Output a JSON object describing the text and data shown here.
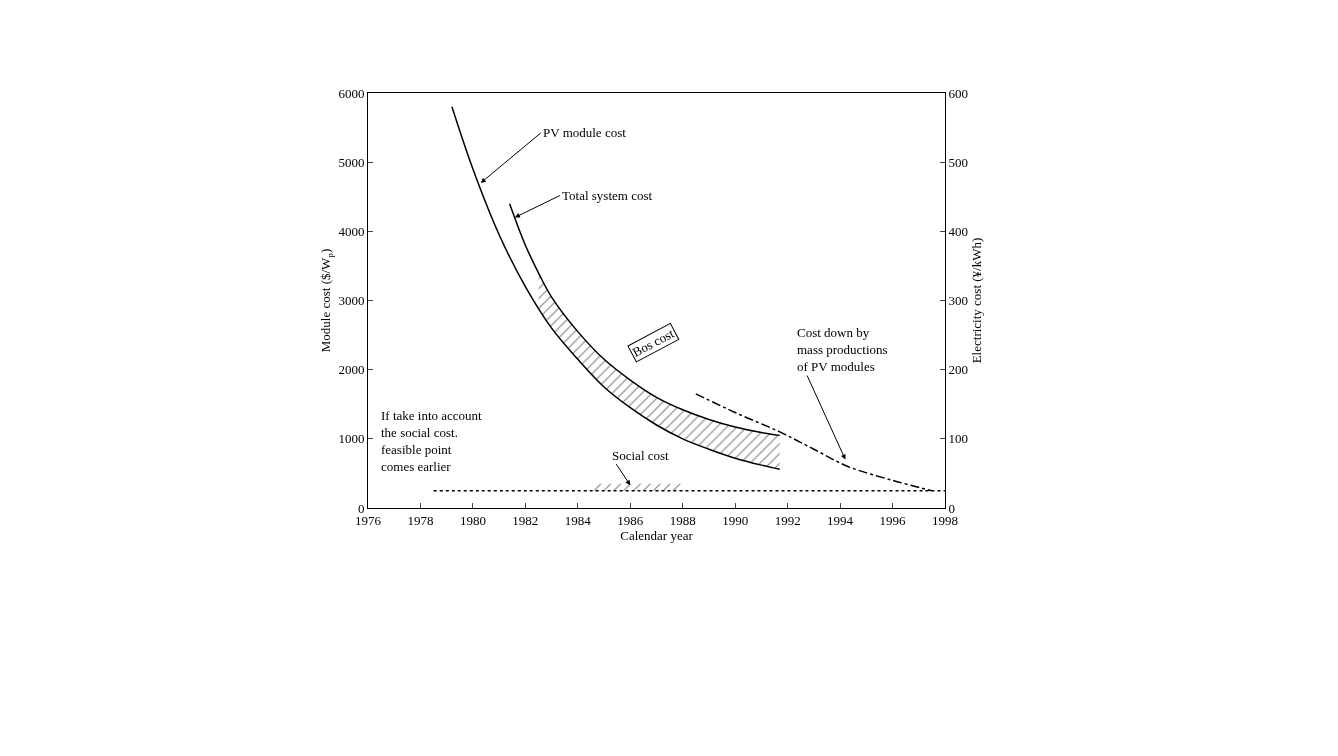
{
  "chart_data": {
    "type": "line",
    "xlabel": "Calendar year",
    "ylabel": "Module cost ($/W$_{p}$)",
    "y2label": "Electricity cost (¥/kWh)",
    "xlim": [
      1976,
      1998
    ],
    "xticks": [
      1976,
      1978,
      1980,
      1982,
      1984,
      1986,
      1988,
      1990,
      1992,
      1994,
      1996,
      1998
    ],
    "ylim": [
      0,
      6000
    ],
    "yticks": [
      0,
      1000,
      2000,
      3000,
      4000,
      5000,
      6000
    ],
    "y2lim": [
      0,
      600
    ],
    "y2ticks": [
      0,
      100,
      200,
      300,
      400,
      500,
      600
    ],
    "marker": "none",
    "series": [
      {
        "color": "#000000",
        "line_style": "solid",
        "x": [
          1979.2,
          1980,
          1981,
          1982,
          1983,
          1984,
          1985,
          1986,
          1987,
          1988,
          1989,
          1990,
          1991,
          1991.7
        ],
        "values": [
          5800,
          4900,
          3950,
          3200,
          2600,
          2150,
          1750,
          1450,
          1200,
          1000,
          850,
          720,
          620,
          560
        ]
      },
      {
        "color": "#000000",
        "line_style": "solid",
        "x": [
          1981.4,
          1982,
          1982.5,
          1983,
          1984,
          1985,
          1986,
          1987,
          1988,
          1989,
          1990,
          1991,
          1991.7
        ],
        "values": [
          4400,
          3800,
          3400,
          3050,
          2550,
          2150,
          1850,
          1600,
          1420,
          1280,
          1170,
          1090,
          1050
        ],
        "lower": [
          null,
          null,
          2900,
          2600,
          2150,
          1750,
          1450,
          1200,
          1000,
          850,
          720,
          620,
          560
        ],
        "upper": [
          null,
          null,
          3400,
          3050,
          2550,
          2150,
          1850,
          1600,
          1420,
          1280,
          1170,
          1090,
          1050
        ]
      },
      {
        "color": "#000000",
        "line_style": "dashdot",
        "x": [
          1988.5,
          1990,
          1991.7,
          1993,
          1994.3,
          1996,
          1997.5
        ],
        "values": [
          1650,
          1380,
          1100,
          850,
          600,
          400,
          250
        ]
      },
      {
        "color": "#000000",
        "line_style": "dotted",
        "x": [
          1978.5,
          1984.6,
          1988,
          1998
        ],
        "values": [
          250,
          250,
          250,
          250
        ],
        "lower": [
          null,
          250,
          250,
          null
        ],
        "upper": [
          null,
          350,
          350,
          null
        ]
      }
    ],
    "annotations": [
      {
        "text": "PV module cost",
        "x": 1980.3,
        "y": 4700
      },
      {
        "text": "Total system cost",
        "x": 1981.6,
        "y": 4200
      },
      {
        "text": "Cost down by\nmass productions\nof PV modules",
        "x": 1994.2,
        "y": 700
      },
      {
        "text": "Social cost",
        "x": 1986,
        "y": 330
      },
      "Bos cost",
      "If take into account\nthe social cost.\nfeasible point\ncomes earlier"
    ]
  }
}
